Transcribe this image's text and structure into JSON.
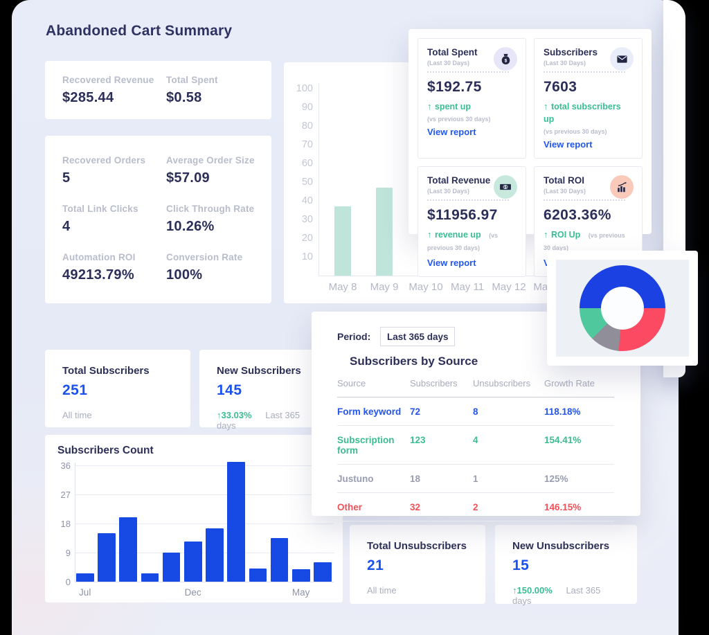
{
  "page": {
    "title": "Abandoned Cart Summary"
  },
  "recovered_card": {
    "items": [
      {
        "label": "Recovered Revenue",
        "value": "$285.44"
      },
      {
        "label": "Total Spent",
        "value": "$0.58"
      }
    ]
  },
  "orders_card": {
    "items": [
      {
        "label": "Recovered Orders",
        "value": "5"
      },
      {
        "label": "Average Order Size",
        "value": "$57.09"
      },
      {
        "label": "Total Link Clicks",
        "value": "4"
      },
      {
        "label": "Click Through Rate",
        "value": "10.26%"
      },
      {
        "label": "Automation ROI",
        "value": "49213.79%"
      },
      {
        "label": "Conversion Rate",
        "value": "100%"
      }
    ]
  },
  "stat_cards": [
    {
      "title": "Total Spent",
      "period": "(Last 30 Days)",
      "value": "$192.75",
      "delta_arrow": "↑",
      "delta": "spent up",
      "delta_note": "(vs previous 30 days)",
      "link": "View report",
      "icon": "money-bag-icon",
      "icon_bg": "#e7e6f8"
    },
    {
      "title": "Subscribers",
      "period": "(Last 30 Days)",
      "value": "7603",
      "delta_arrow": "↑",
      "delta": "total subscribers up",
      "delta_note": "(vs previous 30 days)",
      "link": "View report",
      "icon": "envelope-icon",
      "icon_bg": "#e9edf9"
    },
    {
      "title": "Total Revenue",
      "period": "(Last 30 Days)",
      "value": "$11956.97",
      "delta_arrow": "↑",
      "delta": "revenue up",
      "delta_note": "(vs previous 30 days)",
      "link": "View report",
      "icon": "dollar-bill-icon",
      "icon_bg": "#c7e9dd"
    },
    {
      "title": "Total ROI",
      "period": "(Last 30 Days)",
      "value": "6203.36%",
      "delta_arrow": "↑",
      "delta": "ROI Up",
      "delta_note": "(vs previous 30 days)",
      "link": "View report",
      "icon": "bar-chart-icon",
      "icon_bg": "#f9c9ba"
    }
  ],
  "subscriber_cards": {
    "total": {
      "title": "Total Subscribers",
      "value": "251",
      "meta": "All time"
    },
    "new": {
      "title": "New Subscribers",
      "value": "145",
      "delta": "↑33.03%",
      "meta": "Last 365 days"
    }
  },
  "unsubscriber_cards": {
    "total": {
      "title": "Total Unsubscribers",
      "value": "21",
      "meta": "All time"
    },
    "new": {
      "title": "New Unsubscribers",
      "value": "15",
      "delta": "↑150.00%",
      "meta": "Last 365 days"
    }
  },
  "period_control": {
    "label": "Period:",
    "value": "Last 365 days"
  },
  "source_table": {
    "title": "Subscribers by Source",
    "columns": [
      "Source",
      "Subscribers",
      "Unsubscribers",
      "Growth Rate"
    ],
    "rows": [
      {
        "source": "Form keyword",
        "subscribers": "72",
        "unsubscribers": "8",
        "growth": "118.18%",
        "color": "#2455e9"
      },
      {
        "source": "Subscription form",
        "subscribers": "123",
        "unsubscribers": "4",
        "growth": "154.41%",
        "color": "#3cbc92"
      },
      {
        "source": "Justuno",
        "subscribers": "18",
        "unsubscribers": "1",
        "growth": "125%",
        "color": "#999db0"
      },
      {
        "source": "Other",
        "subscribers": "32",
        "unsubscribers": "2",
        "growth": "146.15%",
        "color": "#f45059"
      }
    ]
  },
  "chart_data": [
    {
      "id": "daily-bar-chart",
      "type": "bar",
      "categories": [
        "May 8",
        "May 9",
        "May 10",
        "May 11",
        "May 12",
        "May 13"
      ],
      "values": [
        37,
        47,
        null,
        null,
        null,
        null
      ],
      "note": "bars for May 10 - May 13 have tops covered by the overlay stats panel; only portions below value ~25 are visible",
      "ylim": [
        0,
        100
      ],
      "yticks": [
        100,
        90,
        80,
        70,
        60,
        50,
        40,
        30,
        20,
        10
      ],
      "bar_color": "#bfe5da",
      "grid": false,
      "title": ""
    },
    {
      "id": "source-donut-chart",
      "type": "pie",
      "start_angle_deg": 270,
      "segments": [
        {
          "name": "blue",
          "value": 50,
          "color": "#1b41e2"
        },
        {
          "name": "red",
          "value": 26.4,
          "color": "#fc4a62"
        },
        {
          "name": "gray",
          "value": 11.1,
          "color": "#8f8e99"
        },
        {
          "name": "teal",
          "value": 12.5,
          "color": "#4ec89c"
        }
      ],
      "title": ""
    },
    {
      "id": "subscribers-count-chart",
      "type": "bar",
      "title": "Subscribers Count",
      "values": [
        2.5,
        15,
        20,
        2.5,
        9,
        12.5,
        16.5,
        37,
        4,
        13.5,
        3.8,
        6
      ],
      "yticks": [
        36,
        27,
        18,
        9,
        0
      ],
      "ylim": [
        0,
        38
      ],
      "xtick_labels": [
        {
          "index": 0,
          "label": "Jul"
        },
        {
          "index": 5,
          "label": "Dec"
        },
        {
          "index": 10,
          "label": "May"
        }
      ],
      "bar_color": "#1749e5",
      "grid": true
    }
  ],
  "colors": {
    "accent_blue": "#2257ea",
    "green": "#3abc93",
    "red": "#f45059",
    "navy": "#2e3260",
    "panel_bg": "#e7ebf7"
  }
}
